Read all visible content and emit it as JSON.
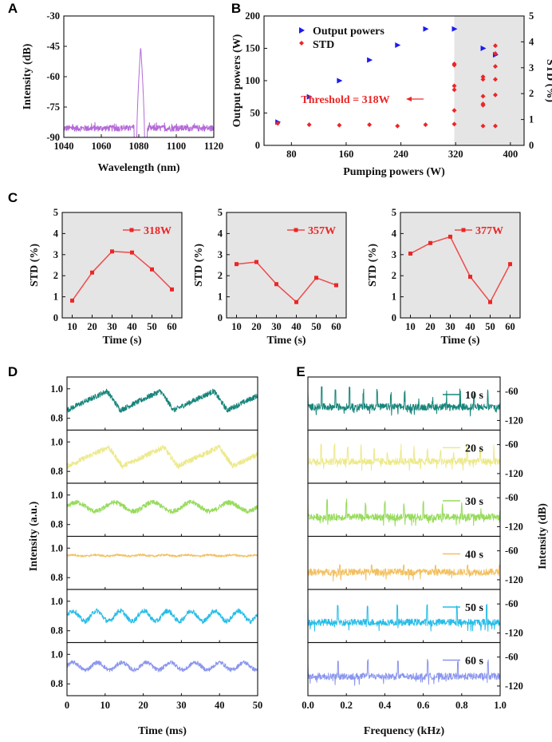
{
  "colors": {
    "purple": "#b46ad8",
    "blue": "#1b1bf0",
    "red": "#ec2626",
    "red_line": "#ef4a4a",
    "shade": "#e5e5e5",
    "teal": "#17857a",
    "yellow": "#ece98a",
    "green": "#97db5c",
    "orange": "#f2c060",
    "cyan": "#27bde8",
    "lavender": "#8b96ee"
  },
  "chart_data": [
    {
      "id": "A",
      "panel_label": "A",
      "type": "line",
      "title": "",
      "xlabel": "Wavelength (nm)",
      "ylabel": "Intensity (dB)",
      "xlim": [
        1040,
        1120
      ],
      "ylim": [
        -90,
        -30
      ],
      "xticks": [
        "1040",
        "1060",
        "1080",
        "1100",
        "1120"
      ],
      "yticks": [
        "-30",
        "-45",
        "-60",
        "-75",
        "-90"
      ],
      "noise_floor_db": [
        -87,
        -84
      ],
      "peak": {
        "x": 1081,
        "y": -45,
        "width_nm": 4
      }
    },
    {
      "id": "B",
      "panel_label": "B",
      "type": "scatter",
      "xlabel": "Pumping powers (W)",
      "ylabel": "Output powers (W)",
      "y2label": "STD (%)",
      "xlim": [
        40,
        420
      ],
      "ylim": [
        0,
        200
      ],
      "y2lim": [
        0,
        5
      ],
      "xticks": [
        "80",
        "160",
        "240",
        "320",
        "400"
      ],
      "yticks": [
        "0",
        "50",
        "100",
        "150",
        "200"
      ],
      "y2ticks": [
        "0",
        "1",
        "2",
        "3",
        "4",
        "5"
      ],
      "shaded_from_x": 318,
      "annotation": "Threshold = 318W",
      "legend": [
        "Output powers",
        "STD"
      ],
      "series": [
        {
          "name": "Output powers",
          "axis": "left",
          "x": [
            60,
            106,
            150,
            194,
            235,
            276,
            318,
            360,
            378
          ],
          "y": [
            36,
            75,
            100,
            132,
            155,
            180,
            180,
            150,
            140
          ]
        },
        {
          "name": "STD",
          "axis": "right",
          "x": [
            60,
            106,
            150,
            194,
            235,
            276,
            318,
            318,
            318,
            318,
            318,
            318,
            360,
            360,
            360,
            360,
            360,
            360,
            378,
            378,
            378,
            378,
            378,
            378
          ],
          "y": [
            0.85,
            0.8,
            0.78,
            0.8,
            0.75,
            0.8,
            0.82,
            1.35,
            2.15,
            2.3,
            3.15,
            3.1,
            2.55,
            2.65,
            1.6,
            0.75,
            1.9,
            1.55,
            3.05,
            3.55,
            3.85,
            1.95,
            0.75,
            2.55
          ]
        }
      ]
    },
    {
      "id": "C1",
      "panel_label": "C",
      "type": "line",
      "xlabel": "Time (s)",
      "ylabel": "STD (%)",
      "legend": "318W",
      "xlim": [
        5,
        65
      ],
      "ylim": [
        0,
        5
      ],
      "xticks": [
        "10",
        "20",
        "30",
        "40",
        "50",
        "60"
      ],
      "yticks": [
        "0",
        "1",
        "2",
        "3",
        "4",
        "5"
      ],
      "x": [
        10,
        20,
        30,
        40,
        50,
        60
      ],
      "y": [
        0.82,
        2.15,
        3.15,
        3.1,
        2.3,
        1.35
      ]
    },
    {
      "id": "C2",
      "type": "line",
      "xlabel": "Time (s)",
      "ylabel": "STD (%)",
      "legend": "357W",
      "xlim": [
        5,
        65
      ],
      "ylim": [
        0,
        5
      ],
      "xticks": [
        "10",
        "20",
        "30",
        "40",
        "50",
        "60"
      ],
      "yticks": [
        "0",
        "1",
        "2",
        "3",
        "4",
        "5"
      ],
      "x": [
        10,
        20,
        30,
        40,
        50,
        60
      ],
      "y": [
        2.55,
        2.65,
        1.6,
        0.75,
        1.9,
        1.55
      ]
    },
    {
      "id": "C3",
      "type": "line",
      "xlabel": "Time (s)",
      "ylabel": "STD (%)",
      "legend": "377W",
      "xlim": [
        5,
        65
      ],
      "ylim": [
        0,
        5
      ],
      "xticks": [
        "10",
        "20",
        "30",
        "40",
        "50",
        "60"
      ],
      "yticks": [
        "0",
        "1",
        "2",
        "3",
        "4",
        "5"
      ],
      "x": [
        10,
        20,
        30,
        40,
        50,
        60
      ],
      "y": [
        3.05,
        3.55,
        3.85,
        1.95,
        0.75,
        2.55
      ]
    },
    {
      "id": "D",
      "panel_label": "D",
      "type": "line",
      "xlabel": "Time (ms)",
      "ylabel": "Intensity (a.u.)",
      "xlim": [
        0,
        50
      ],
      "ylim": [
        0.72,
        1.08
      ],
      "xticks": [
        "0",
        "10",
        "20",
        "30",
        "40",
        "50"
      ],
      "yticks": [
        "1.0",
        "0.8"
      ],
      "series": [
        {
          "name": "10 s",
          "color": "teal",
          "base": 0.92,
          "period_ms": 14,
          "amplitude": 0.065,
          "noise": 0.018
        },
        {
          "name": "20 s",
          "color": "yellow",
          "base": 0.9,
          "period_ms": 14.5,
          "amplitude": 0.065,
          "noise": 0.018
        },
        {
          "name": "30 s",
          "color": "green",
          "base": 0.92,
          "period_ms": 10,
          "amplitude": 0.03,
          "noise": 0.016
        },
        {
          "name": "40 s",
          "color": "orange",
          "base": 0.95,
          "period_ms": 6,
          "amplitude": 0.004,
          "noise": 0.007
        },
        {
          "name": "50 s",
          "color": "cyan",
          "base": 0.9,
          "period_ms": 6.2,
          "amplitude": 0.035,
          "noise": 0.016
        },
        {
          "name": "60 s",
          "color": "lavender",
          "base": 0.92,
          "period_ms": 6.4,
          "amplitude": 0.025,
          "noise": 0.014
        }
      ]
    },
    {
      "id": "E",
      "panel_label": "E",
      "type": "line",
      "xlabel": "Frequency (kHz)",
      "ylabel": "Intensity (dB)",
      "xlim": [
        0,
        1
      ],
      "ylim": [
        -140,
        -30
      ],
      "xticks": [
        "0.0",
        "0.2",
        "0.4",
        "0.6",
        "0.8",
        "1.0"
      ],
      "yticks": [
        "-60",
        "-120"
      ],
      "series": [
        {
          "name": "10 s",
          "color": "teal",
          "floor_db": -92,
          "fundamental_khz": 0.072,
          "peak_db": -50
        },
        {
          "name": "20 s",
          "color": "yellow",
          "floor_db": -95,
          "fundamental_khz": 0.069,
          "peak_db": -58
        },
        {
          "name": "30 s",
          "color": "green",
          "floor_db": -100,
          "fundamental_khz": 0.1,
          "peak_db": -62
        },
        {
          "name": "40 s",
          "color": "orange",
          "floor_db": -104,
          "fundamental_khz": 0.166,
          "peak_db": -88
        },
        {
          "name": "50 s",
          "color": "cyan",
          "floor_db": -98,
          "fundamental_khz": 0.155,
          "peak_db": -60
        },
        {
          "name": "60 s",
          "color": "lavender",
          "floor_db": -100,
          "fundamental_khz": 0.156,
          "peak_db": -64
        }
      ]
    }
  ]
}
